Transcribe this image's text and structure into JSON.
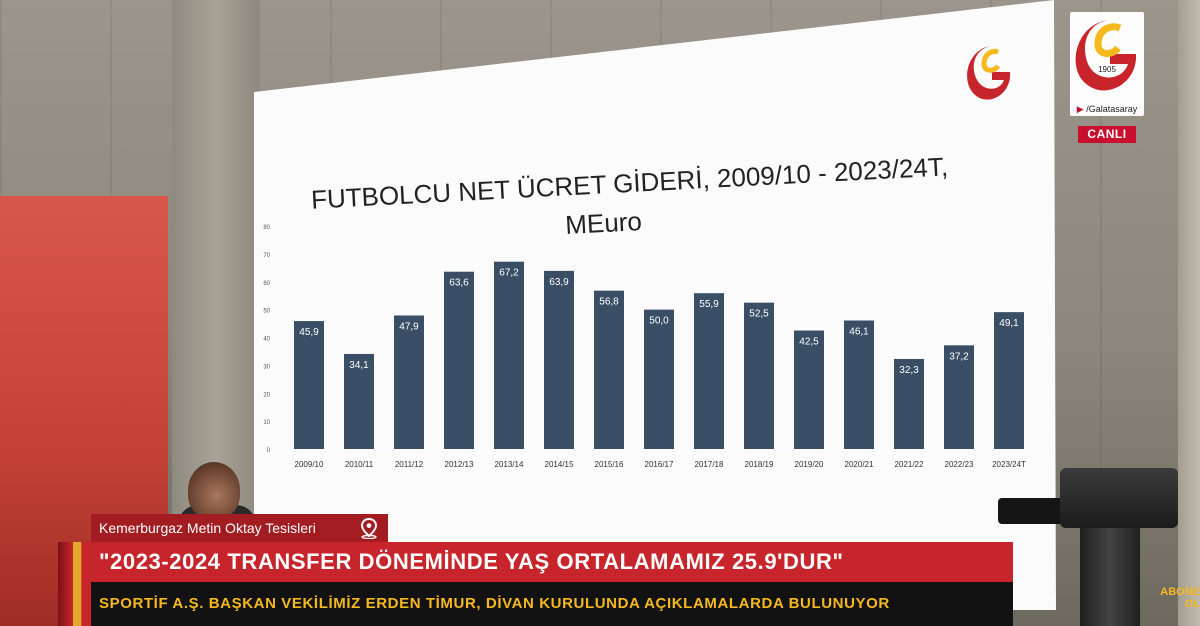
{
  "chart_data": {
    "type": "bar",
    "title": "FUTBOLCU NET ÜCRET GİDERİ, 2009/10 - 2023/24T,",
    "subtitle": "MEuro",
    "categories": [
      "2009/10",
      "2010/11",
      "2011/12",
      "2012/13",
      "2013/14",
      "2014/15",
      "2015/16",
      "2016/17",
      "2017/18",
      "2018/19",
      "2019/20",
      "2020/21",
      "2021/22",
      "2022/23",
      "2023/24T"
    ],
    "values": [
      45.9,
      34.1,
      47.9,
      63.6,
      67.2,
      63.9,
      56.8,
      50.0,
      55.9,
      52.5,
      42.5,
      46.1,
      32.3,
      37.2,
      49.1
    ],
    "value_labels": [
      "45,9",
      "34,1",
      "47,9",
      "63,6",
      "67,2",
      "63,9",
      "56,8",
      "50,0",
      "55,9",
      "52,5",
      "42,5",
      "46,1",
      "32,3",
      "37,2",
      "49,1"
    ],
    "ylim": [
      0,
      80
    ],
    "yticks": [
      "0",
      "10",
      "20",
      "30",
      "40",
      "50",
      "60",
      "70",
      "80"
    ],
    "grid": false,
    "bar_color": "#3a4f66"
  },
  "broadcaster": {
    "handle": "/Galatasaray",
    "live_label": "CANLI",
    "year": "1905"
  },
  "lower_third": {
    "location": "Kemerburgaz Metin Oktay Tesisleri",
    "headline": "\"2023-2024 TRANSFER DÖNEMİNDE YAŞ ORTALAMAMIZ 25.9'DUR\"",
    "subline": "SPORTİF A.Ş. BAŞKAN VEKİLİMİZ ERDEN TİMUR, DİVAN KURULUNDA AÇIKLAMALARDA BULUNUYOR"
  },
  "subscribe_label": "ABONE OL",
  "colors": {
    "brand_red": "#c8242b",
    "brand_yellow": "#f5b91d"
  }
}
